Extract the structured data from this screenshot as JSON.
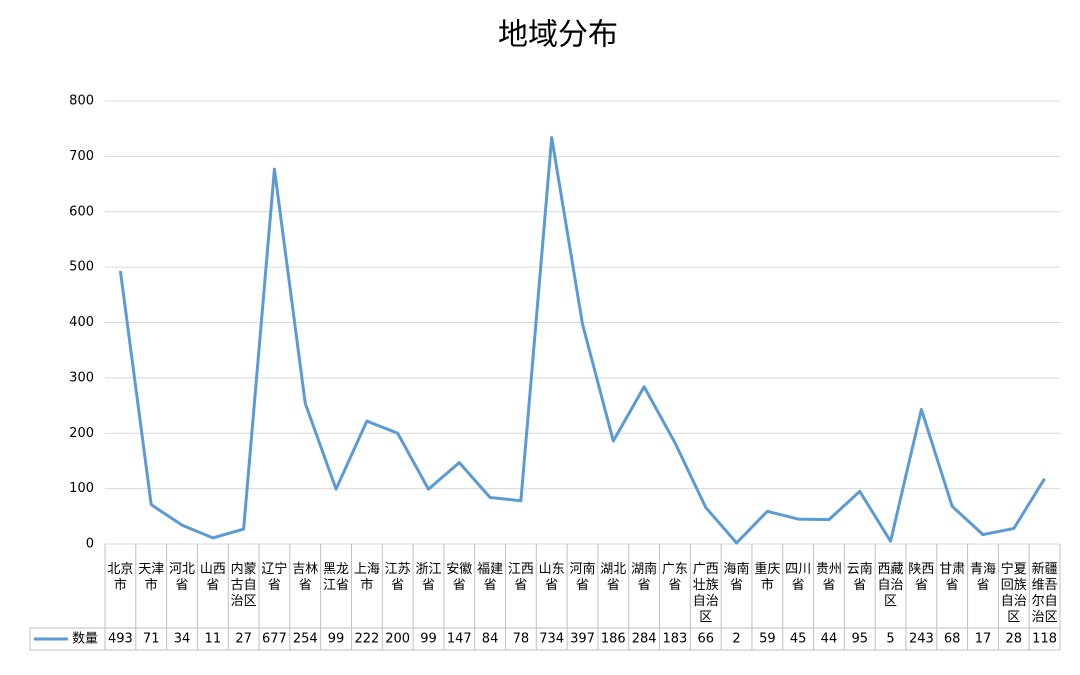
{
  "chart_data": {
    "type": "line",
    "title": "地域分布",
    "categories": [
      "北京市",
      "天津市",
      "河北省",
      "山西省",
      "内蒙古自治区",
      "辽宁省",
      "吉林省",
      "黑龙江省",
      "上海市",
      "江苏省",
      "浙江省",
      "安徽省",
      "福建省",
      "江西省",
      "山东省",
      "河南省",
      "湖北省",
      "湖南省",
      "广东省",
      "广西壮族自治区",
      "海南省",
      "重庆市",
      "四川省",
      "贵州省",
      "云南省",
      "西藏自治区",
      "陕西省",
      "甘肃省",
      "青海省",
      "宁夏回族自治区",
      "新疆维吾尔自治区"
    ],
    "series": [
      {
        "name": "数量",
        "color": "#5b9bd5",
        "values": [
          493,
          71,
          34,
          11,
          27,
          677,
          254,
          99,
          222,
          200,
          99,
          147,
          84,
          78,
          734,
          397,
          186,
          284,
          183,
          66,
          2,
          59,
          45,
          44,
          95,
          5,
          243,
          68,
          17,
          28,
          118
        ]
      }
    ],
    "ylim": [
      0,
      800
    ],
    "yticks": [
      0,
      100,
      200,
      300,
      400,
      500,
      600,
      700,
      800
    ],
    "grid": true,
    "legend": "data-table"
  }
}
